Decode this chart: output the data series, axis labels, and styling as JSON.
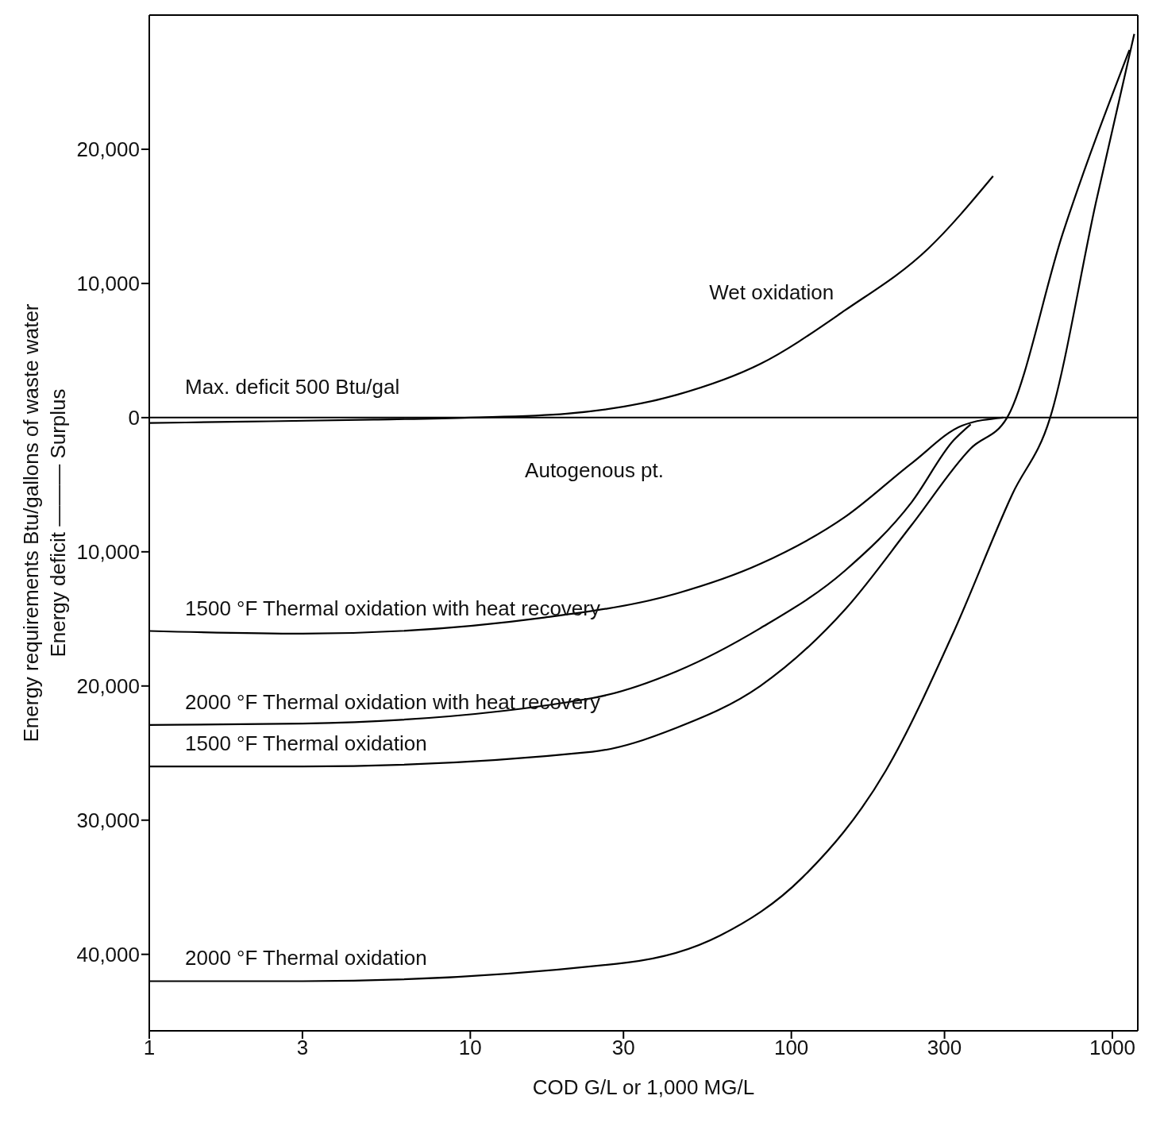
{
  "chart_data": {
    "type": "line",
    "xlabel": "COD G/L or 1,000 MG/L",
    "ylabel": "Energy requirements Btu/gallons of waste water\nEnergy deficit ——— Surplus",
    "log": "x",
    "xlim": [
      1,
      1200
    ],
    "xticks": [
      1,
      3,
      10,
      30,
      100,
      300,
      1000
    ],
    "ylim": [
      -45700,
      30000
    ],
    "yticks": [
      {
        "value": 20000,
        "label": "20,000"
      },
      {
        "value": 10000,
        "label": "10,000"
      },
      0,
      {
        "value": -10000,
        "label": "10,000"
      },
      {
        "value": -20000,
        "label": "20,000"
      },
      {
        "value": -30000,
        "label": "30,000"
      },
      {
        "value": -40000,
        "label": "40,000"
      }
    ],
    "marker": "none",
    "line_style": "solid",
    "ref_lines": [
      {
        "axis": "y",
        "value": 0,
        "color": "#000000"
      }
    ],
    "series": [
      {
        "name": "Wet oxidation",
        "color": "#000000",
        "x": [
          1,
          2,
          5,
          10,
          20,
          44,
          80,
          147,
          267,
          425
        ],
        "values": [
          -400,
          -300,
          -150,
          0,
          300,
          1700,
          4000,
          8000,
          12600,
          18000
        ]
      },
      {
        "name": "1500 °F Thermal oxidation with heat recovery",
        "color": "#000000",
        "x": [
          1,
          3,
          17,
          44,
          80,
          147,
          237,
          340,
          457
        ],
        "values": [
          -15900,
          -16100,
          -14900,
          -13100,
          -10900,
          -7400,
          -3400,
          -600,
          0
        ]
      },
      {
        "name": "2000 °F Thermal oxidation with heat recovery",
        "color": "#000000",
        "x": [
          1,
          3,
          24,
          44,
          80,
          147,
          237,
          320,
          362
        ],
        "values": [
          -22900,
          -22800,
          -20900,
          -18900,
          -15700,
          -11400,
          -6300,
          -1700,
          -500
        ]
      },
      {
        "name": "1500 °F Thermal oxidation",
        "color": "#000000",
        "x": [
          1,
          3,
          24,
          44,
          80,
          147,
          237,
          362,
          470,
          700,
          1130
        ],
        "values": [
          -26000,
          -26000,
          -24900,
          -23100,
          -20000,
          -14300,
          -8000,
          -2300,
          0,
          13700,
          27400
        ]
      },
      {
        "name": "2000 °F Thermal oxidation",
        "color": "#000000",
        "x": [
          1,
          3,
          31,
          60,
          108,
          197,
          320,
          488,
          640,
          888,
          1170
        ],
        "values": [
          -42000,
          -42000,
          -40600,
          -38600,
          -34300,
          -26300,
          -16000,
          -5700,
          0,
          16000,
          28600
        ]
      }
    ],
    "annotations": [
      "Max. deficit 500 Btu/gal",
      "Autogenous pt."
    ]
  }
}
